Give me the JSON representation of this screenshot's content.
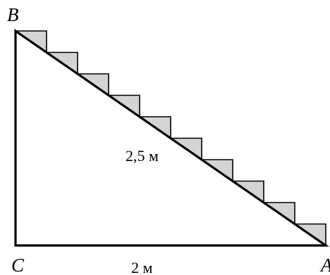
{
  "diagram": {
    "vertices": {
      "top": "B",
      "bottom_left": "C",
      "bottom_right": "A"
    },
    "lengths": {
      "hypotenuse": "2,5 м",
      "base": "2 м"
    },
    "step_count": 10,
    "colors": {
      "stroke": "#000000",
      "step_fill": "#d4d4d4",
      "background": "#ffffff"
    }
  }
}
